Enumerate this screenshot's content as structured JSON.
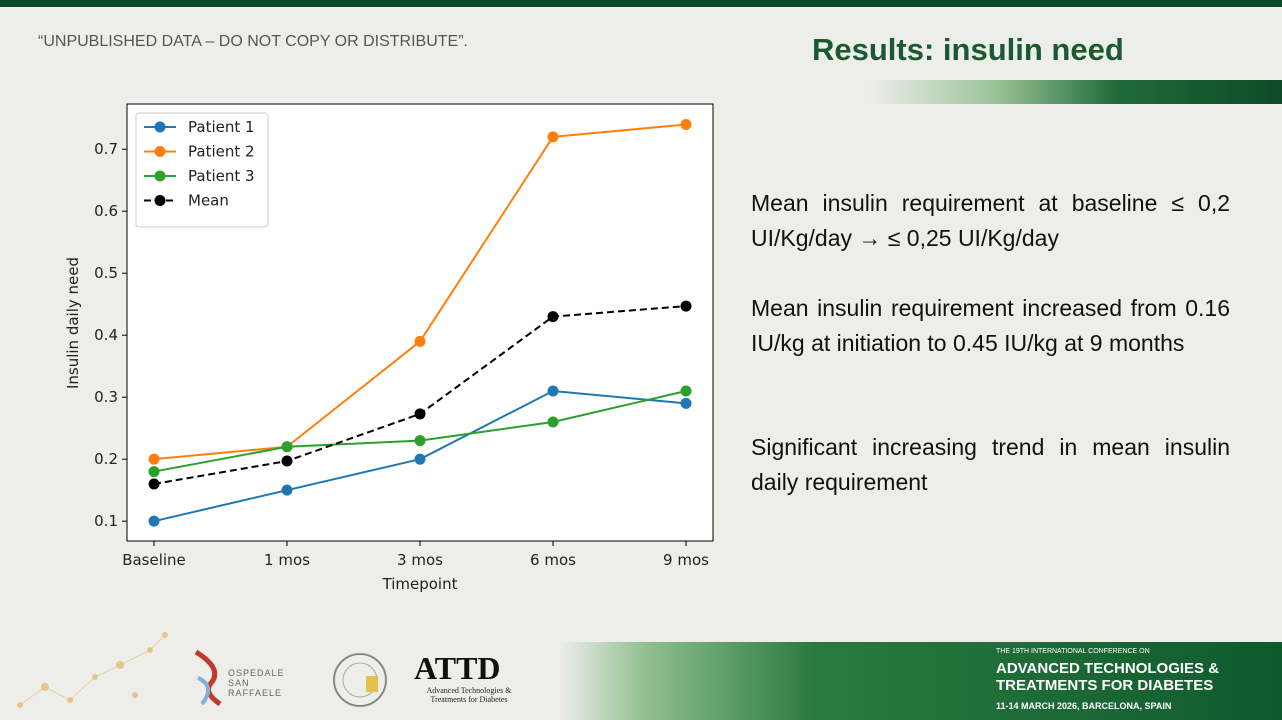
{
  "slide": {
    "disclaimer": "“UNPUBLISHED DATA – DO NOT COPY OR DISTRIBUTE”.",
    "title": "Results: insulin need",
    "paragraphs": [
      "Mean insulin requirement at baseline ≤ 0,2 UI/Kg/day → ≤ 0,25 UI/Kg/day",
      "Mean insulin requirement increased from 0.16 IU/kg at initiation to 0.45 IU/kg at 9 months",
      "Significant increasing trend in mean insulin daily requirement"
    ],
    "footer": {
      "hospital": "OSPEDALE SAN RAFFAELE",
      "attd_logo": "ATTD",
      "attd_caption": "Advanced Technologies & Treatments for Diabetes",
      "conference_pre": "THE 19TH INTERNATIONAL CONFERENCE ON",
      "conference_name": "ADVANCED TECHNOLOGIES & TREATMENTS FOR DIABETES",
      "conference_date": "11-14 MARCH 2026, BARCELONA, SPAIN"
    }
  },
  "chart_data": {
    "type": "line",
    "x_label": "Timepoint",
    "y_label": "Insulin daily need",
    "categories": [
      "Baseline",
      "1 mos",
      "3 mos",
      "6 mos",
      "9 mos"
    ],
    "series": [
      {
        "name": "Patient 1",
        "color": "#1f77b4",
        "linestyle": "solid",
        "values": [
          0.1,
          0.15,
          0.2,
          0.31,
          0.29
        ]
      },
      {
        "name": "Patient 2",
        "color": "#ff7f0e",
        "linestyle": "solid",
        "values": [
          0.2,
          0.22,
          0.39,
          0.72,
          0.74
        ]
      },
      {
        "name": "Patient 3",
        "color": "#2ca02c",
        "linestyle": "solid",
        "values": [
          0.18,
          0.22,
          0.23,
          0.26,
          0.31
        ]
      },
      {
        "name": "Mean",
        "color": "#000000",
        "linestyle": "dashed",
        "values": [
          0.16,
          0.197,
          0.273,
          0.43,
          0.447
        ]
      }
    ],
    "ylim": [
      0.068,
      0.773
    ],
    "yticks": [
      0.1,
      0.2,
      0.3,
      0.4,
      0.5,
      0.6,
      0.7
    ],
    "legend": "upper left",
    "grid": false
  }
}
